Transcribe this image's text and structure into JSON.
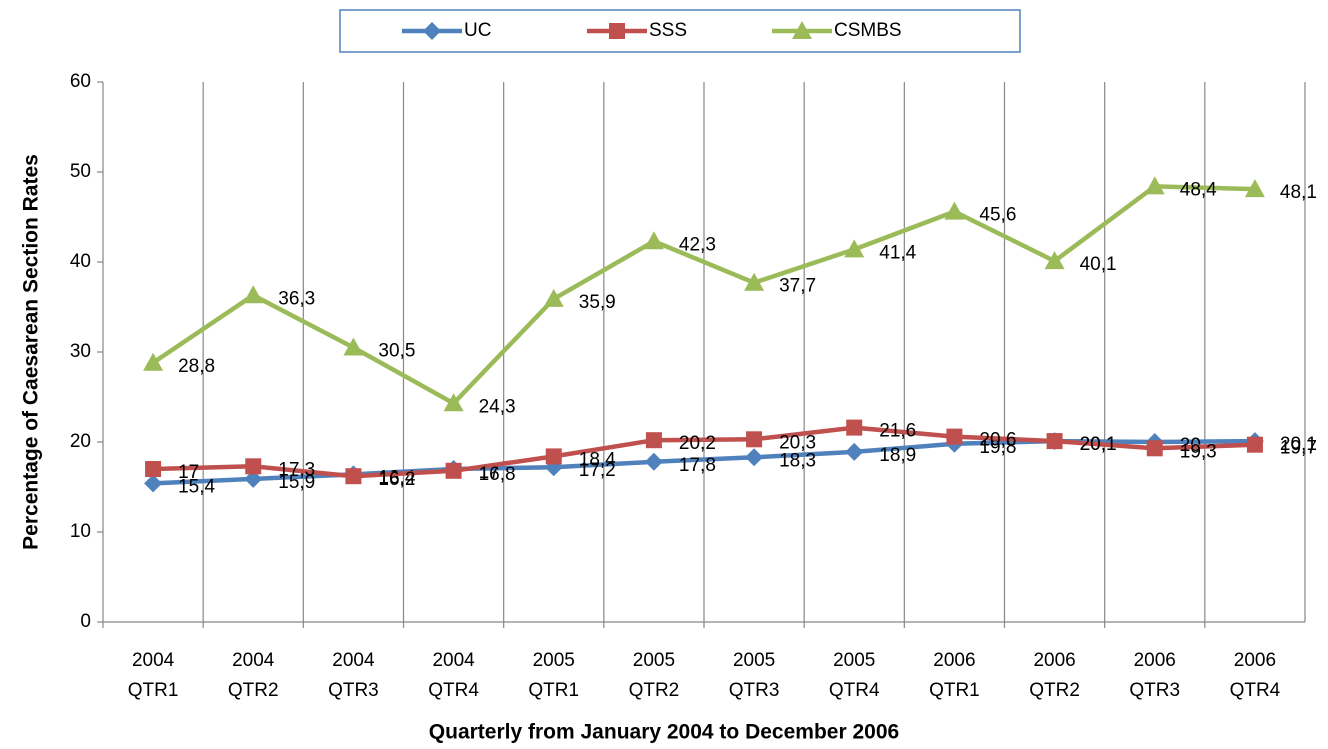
{
  "chart_data": {
    "type": "line",
    "categories": [
      [
        "2004",
        "QTR1"
      ],
      [
        "2004",
        "QTR2"
      ],
      [
        "2004",
        "QTR3"
      ],
      [
        "2004",
        "QTR4"
      ],
      [
        "2005",
        "QTR1"
      ],
      [
        "2005",
        "QTR2"
      ],
      [
        "2005",
        "QTR3"
      ],
      [
        "2005",
        "QTR4"
      ],
      [
        "2006",
        "QTR1"
      ],
      [
        "2006",
        "QTR2"
      ],
      [
        "2006",
        "QTR3"
      ],
      [
        "2006",
        "QTR4"
      ]
    ],
    "series": [
      {
        "name": "UC",
        "color": "#4f81bd",
        "marker": "diamond",
        "values": [
          15.4,
          15.9,
          16.4,
          17,
          17.2,
          17.8,
          18.3,
          18.9,
          19.8,
          20.1,
          20,
          20.1
        ],
        "value_labels": [
          "15,4",
          "15,9",
          "16,4",
          "17",
          "17,2",
          "17,8",
          "18,3",
          "18,9",
          "19,8",
          "20,1",
          "20",
          "20,1"
        ]
      },
      {
        "name": "SSS",
        "color": "#c0504d",
        "marker": "square",
        "values": [
          17,
          17.3,
          16.2,
          16.8,
          18.4,
          20.2,
          20.3,
          21.6,
          20.6,
          20.1,
          19.3,
          19.7
        ],
        "value_labels": [
          "17",
          "17,3",
          "16,2",
          "16,8",
          "18,4",
          "20,2",
          "20,3",
          "21,6",
          "20,6",
          "20,1",
          "19,3",
          "19,7"
        ]
      },
      {
        "name": "CSMBS",
        "color": "#9bbb59",
        "marker": "triangle",
        "values": [
          28.8,
          36.3,
          30.5,
          24.3,
          35.9,
          42.3,
          37.7,
          41.4,
          45.6,
          40.1,
          48.4,
          48.1
        ],
        "value_labels": [
          "28,8",
          "36,3",
          "30,5",
          "24,3",
          "35,9",
          "42,3",
          "37,7",
          "41,4",
          "45,6",
          "40,1",
          "48,4",
          "48,1"
        ]
      }
    ],
    "ylabel": "Percentage of Caesarean Section Rates",
    "xlabel": "Quarterly from January 2004 to December 2006",
    "ylim": [
      0,
      60
    ],
    "yticks": [
      0,
      10,
      20,
      30,
      40,
      50,
      60
    ],
    "grid": "x",
    "legend": "top"
  }
}
